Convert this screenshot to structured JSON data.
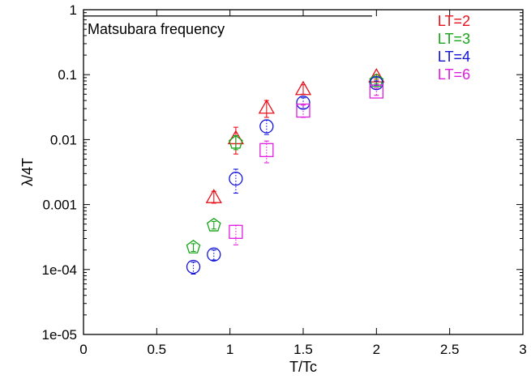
{
  "chart_data": {
    "type": "scatter",
    "title": "",
    "xlabel": "T/Tc",
    "ylabel": "λ/4T",
    "xlim": [
      0,
      3
    ],
    "ylim": [
      1e-05,
      1
    ],
    "yscale": "log",
    "x_ticks": [
      0,
      0.5,
      1,
      1.5,
      2,
      2.5,
      3
    ],
    "x_tick_labels": [
      "0",
      "0.5",
      "1",
      "1.5",
      "2",
      "2.5",
      "3"
    ],
    "y_ticks": [
      1e-05,
      0.0001,
      0.001,
      0.01,
      0.1,
      1
    ],
    "y_tick_labels": [
      "1e-05",
      "1e-04",
      "0.001",
      "0.01",
      "0.1",
      "1"
    ],
    "grid": false,
    "legend_position": "top-right",
    "annotation": {
      "text": "Matsubara frequency",
      "value": 0.8,
      "x_range": [
        0,
        1.97
      ]
    },
    "series": [
      {
        "name": "LT=2",
        "color": "#e8101a",
        "marker": "triangle",
        "x": [
          0.89,
          1.04,
          1.25,
          1.5,
          2.0
        ],
        "y": [
          0.0013,
          0.0105,
          0.031,
          0.06,
          0.094
        ],
        "err_low": [
          0.00105,
          0.006,
          0.022,
          0.05,
          0.085
        ],
        "err_high": [
          0.0016,
          0.0155,
          0.04,
          0.07,
          0.1
        ]
      },
      {
        "name": "LT=3",
        "color": "#17a417",
        "marker": "pentagon",
        "x": [
          0.75,
          0.89,
          1.04,
          2.0
        ],
        "y": [
          0.00022,
          0.00048,
          0.009,
          0.08
        ],
        "err_low": [
          0.00019,
          0.00042,
          0.007,
          0.072
        ],
        "err_high": [
          0.00025,
          0.00055,
          0.0115,
          0.09
        ]
      },
      {
        "name": "LT=4",
        "color": "#1313d8",
        "marker": "circle",
        "x": [
          0.75,
          0.89,
          1.04,
          1.25,
          1.5,
          2.0
        ],
        "y": [
          0.00011,
          0.00017,
          0.0025,
          0.016,
          0.037,
          0.074
        ],
        "err_low": [
          8.5e-05,
          0.00014,
          0.0015,
          0.012,
          0.03,
          0.068
        ],
        "err_high": [
          0.00013,
          0.0002,
          0.0035,
          0.02,
          0.044,
          0.08
        ]
      },
      {
        "name": "LT=6",
        "color": "#e01ee0",
        "marker": "square",
        "x": [
          1.04,
          1.25,
          1.5,
          2.0
        ],
        "y": [
          0.00038,
          0.0069,
          0.028,
          0.055
        ],
        "err_low": [
          0.00024,
          0.0044,
          0.022,
          0.048
        ],
        "err_high": [
          0.00048,
          0.0095,
          0.034,
          0.062
        ]
      }
    ]
  }
}
